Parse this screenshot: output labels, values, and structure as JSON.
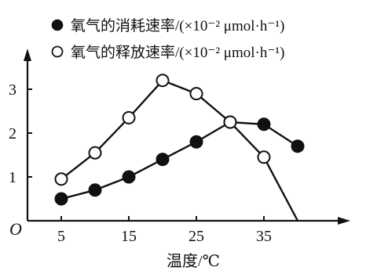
{
  "chart_data": {
    "type": "line",
    "x": [
      5,
      10,
      15,
      20,
      25,
      30,
      35,
      40
    ],
    "series": [
      {
        "name": "氧气的消耗速率/(×10⁻² μmol·h⁻¹)",
        "marker": "filled-circle",
        "x": [
          5,
          10,
          15,
          20,
          25,
          30,
          35,
          40
        ],
        "values": [
          0.5,
          0.7,
          1.0,
          1.4,
          1.8,
          2.25,
          2.2,
          1.7
        ]
      },
      {
        "name": "氧气的释放速率/(×10⁻² μmol·h⁻¹)",
        "marker": "open-circle",
        "x": [
          5,
          10,
          15,
          20,
          25,
          30,
          35,
          40
        ],
        "values": [
          0.95,
          1.55,
          2.35,
          3.2,
          2.9,
          2.25,
          1.45,
          0
        ]
      }
    ],
    "xlabel": "温度/℃",
    "ylabel": "",
    "origin_label": "O",
    "xticks": [
      5,
      15,
      25,
      35
    ],
    "yticks": [
      1,
      2,
      3
    ],
    "xlim": [
      0,
      45
    ],
    "ylim": [
      0,
      3.7
    ],
    "grid": false,
    "legend_position": "top"
  }
}
